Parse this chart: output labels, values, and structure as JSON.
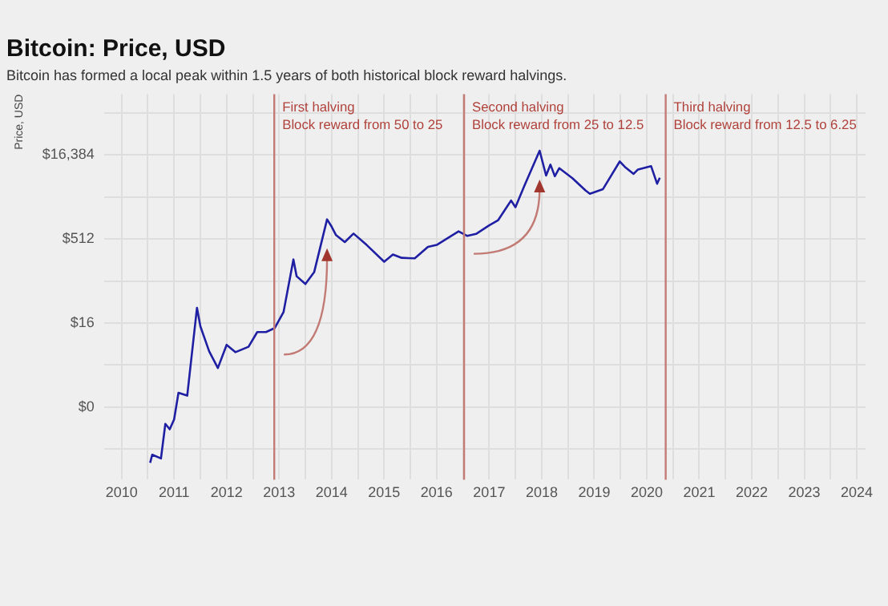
{
  "chart_data": {
    "type": "line",
    "title": "Bitcoin: Price, USD",
    "subtitle": "Bitcoin has formed a local peak within 1.5 years of both historical block reward halvings.",
    "ylabel": "Price, USD",
    "x": [
      "2010-07-17",
      "2010-08",
      "2010-10",
      "2010-11",
      "2010-12",
      "2011-01",
      "2011-02",
      "2011-04",
      "2011-06-08",
      "2011-07",
      "2011-09",
      "2011-11",
      "2012-01",
      "2012-03",
      "2012-06",
      "2012-08",
      "2012-10",
      "2012-12",
      "2013-02",
      "2013-04-09",
      "2013-05",
      "2013-07",
      "2013-09",
      "2013-11-30",
      "2014-01",
      "2014-02",
      "2014-04",
      "2014-06",
      "2014-09",
      "2015-01",
      "2015-03",
      "2015-05",
      "2015-08",
      "2015-11",
      "2016-01",
      "2016-06",
      "2016-08",
      "2016-10",
      "2017-01",
      "2017-03",
      "2017-06",
      "2017-07",
      "2017-09",
      "2017-12-17",
      "2018-02",
      "2018-03",
      "2018-04",
      "2018-05",
      "2018-08",
      "2018-11",
      "2018-12",
      "2019-03",
      "2019-06-26",
      "2019-08",
      "2019-10",
      "2019-11",
      "2020-02",
      "2020-03-12",
      "2020-03-31"
    ],
    "series": [
      {
        "color": "#1f1fa3",
        "values": [
          0.05,
          0.07,
          0.06,
          0.25,
          0.2,
          0.3,
          0.9,
          0.8,
          30,
          14,
          5,
          2.5,
          6.5,
          4.8,
          6,
          11,
          11,
          13,
          25,
          220,
          110,
          80,
          130,
          1150,
          850,
          600,
          450,
          640,
          400,
          200,
          270,
          235,
          230,
          370,
          400,
          700,
          580,
          630,
          900,
          1100,
          2500,
          1900,
          4500,
          19500,
          7000,
          11000,
          6800,
          9500,
          6300,
          3800,
          3300,
          4000,
          12500,
          10000,
          7500,
          9000,
          10300,
          5000,
          6400
        ]
      }
    ],
    "log": "y",
    "grid": true,
    "legend": false,
    "marker": "none",
    "line_style": "solid",
    "xlim": [
      "2009-09",
      "2024-03"
    ],
    "xticks": [
      "2010",
      {
        "value": "2010-07",
        "label": null
      },
      "2011",
      {
        "value": "2011-07",
        "label": null
      },
      "2012",
      {
        "value": "2012-07",
        "label": null
      },
      "2013",
      {
        "value": "2013-07",
        "label": null
      },
      "2014",
      {
        "value": "2014-07",
        "label": null
      },
      "2015",
      {
        "value": "2015-07",
        "label": null
      },
      "2016",
      {
        "value": "2016-07",
        "label": null
      },
      "2017",
      {
        "value": "2017-07",
        "label": null
      },
      "2018",
      {
        "value": "2018-07",
        "label": null
      },
      "2019",
      {
        "value": "2019-07",
        "label": null
      },
      "2020",
      {
        "value": "2020-07",
        "label": null
      },
      "2021",
      {
        "value": "2021-07",
        "label": null
      },
      "2022",
      {
        "value": "2022-07",
        "label": null
      },
      "2023",
      {
        "value": "2023-07",
        "label": null
      },
      "2024"
    ],
    "ylim": [
      0.025,
      200000
    ],
    "yticks": [
      {
        "value": 0.0884,
        "label": null
      },
      {
        "value": 0.5,
        "label": "$0"
      },
      {
        "value": 2.83,
        "label": null
      },
      {
        "value": 16,
        "label": "$16"
      },
      {
        "value": 90.5,
        "label": null
      },
      {
        "value": 512,
        "label": "$512"
      },
      {
        "value": 2896,
        "label": null
      },
      {
        "value": 16384,
        "label": "$16,384"
      },
      {
        "value": 92682,
        "label": null
      }
    ],
    "ref_lines": [
      {
        "axis": "x",
        "value": "2012-11-28",
        "label": "First halving\nBlock reward from 50 to 25",
        "color": "#c27a74"
      },
      {
        "axis": "x",
        "value": "2016-07-09",
        "label": "Second halving\nBlock reward from 25 to 12.5",
        "color": "#c27a74"
      },
      {
        "axis": "x",
        "value": "2020-05-11",
        "label": "Third halving\nBlock reward from 12.5 to 6.25",
        "color": "#c27a74"
      }
    ]
  }
}
